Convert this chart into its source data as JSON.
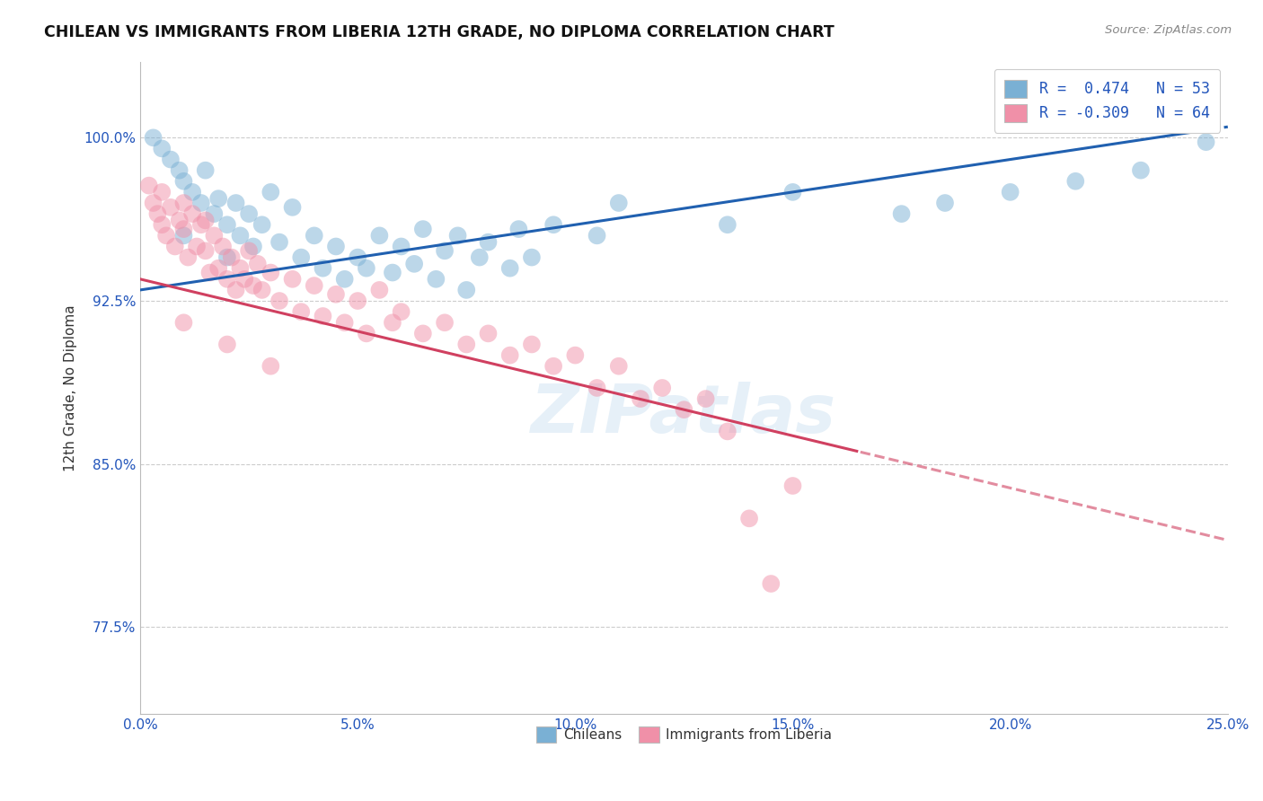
{
  "title": "CHILEAN VS IMMIGRANTS FROM LIBERIA 12TH GRADE, NO DIPLOMA CORRELATION CHART",
  "source": "Source: ZipAtlas.com",
  "ylabel": "12th Grade, No Diploma",
  "xlabel": "",
  "xlim": [
    0.0,
    25.0
  ],
  "ylim": [
    73.5,
    103.5
  ],
  "xticks": [
    0.0,
    5.0,
    10.0,
    15.0,
    20.0,
    25.0
  ],
  "yticks": [
    77.5,
    85.0,
    92.5,
    100.0
  ],
  "ytick_labels": [
    "77.5%",
    "85.0%",
    "92.5%",
    "100.0%"
  ],
  "xtick_labels": [
    "0.0%",
    "5.0%",
    "10.0%",
    "15.0%",
    "20.0%",
    "25.0%"
  ],
  "legend_items": [
    {
      "label": "R =  0.474   N = 53",
      "color": "#a8c4e0"
    },
    {
      "label": "R = -0.309   N = 64",
      "color": "#f4a7b9"
    }
  ],
  "chilean_color": "#7ab0d4",
  "liberia_color": "#f090a8",
  "blue_line_color": "#2060b0",
  "pink_line_color": "#d04060",
  "watermark": "ZIPatlas",
  "blue_line_x0": 0.0,
  "blue_line_y0": 93.0,
  "blue_line_x1": 25.0,
  "blue_line_y1": 100.5,
  "pink_line_x0": 0.0,
  "pink_line_y0": 93.5,
  "pink_line_x1": 25.0,
  "pink_line_y1": 81.5,
  "pink_solid_end": 16.5,
  "blue_solid_end": 24.5,
  "chilean_scatter": [
    [
      0.3,
      100.0
    ],
    [
      0.5,
      99.5
    ],
    [
      0.7,
      99.0
    ],
    [
      0.9,
      98.5
    ],
    [
      1.0,
      98.0
    ],
    [
      1.2,
      97.5
    ],
    [
      1.4,
      97.0
    ],
    [
      1.5,
      98.5
    ],
    [
      1.7,
      96.5
    ],
    [
      1.8,
      97.2
    ],
    [
      2.0,
      96.0
    ],
    [
      2.2,
      97.0
    ],
    [
      2.3,
      95.5
    ],
    [
      2.5,
      96.5
    ],
    [
      2.6,
      95.0
    ],
    [
      2.8,
      96.0
    ],
    [
      3.0,
      97.5
    ],
    [
      3.2,
      95.2
    ],
    [
      3.5,
      96.8
    ],
    [
      3.7,
      94.5
    ],
    [
      4.0,
      95.5
    ],
    [
      4.2,
      94.0
    ],
    [
      4.5,
      95.0
    ],
    [
      4.7,
      93.5
    ],
    [
      5.0,
      94.5
    ],
    [
      5.2,
      94.0
    ],
    [
      5.5,
      95.5
    ],
    [
      5.8,
      93.8
    ],
    [
      6.0,
      95.0
    ],
    [
      6.3,
      94.2
    ],
    [
      6.5,
      95.8
    ],
    [
      6.8,
      93.5
    ],
    [
      7.0,
      94.8
    ],
    [
      7.3,
      95.5
    ],
    [
      7.5,
      93.0
    ],
    [
      7.8,
      94.5
    ],
    [
      8.0,
      95.2
    ],
    [
      8.5,
      94.0
    ],
    [
      8.7,
      95.8
    ],
    [
      9.0,
      94.5
    ],
    [
      9.5,
      96.0
    ],
    [
      10.5,
      95.5
    ],
    [
      11.0,
      97.0
    ],
    [
      13.5,
      96.0
    ],
    [
      15.0,
      97.5
    ],
    [
      17.5,
      96.5
    ],
    [
      18.5,
      97.0
    ],
    [
      20.0,
      97.5
    ],
    [
      21.5,
      98.0
    ],
    [
      23.0,
      98.5
    ],
    [
      24.5,
      99.8
    ],
    [
      1.0,
      95.5
    ],
    [
      2.0,
      94.5
    ]
  ],
  "liberia_scatter": [
    [
      0.2,
      97.8
    ],
    [
      0.3,
      97.0
    ],
    [
      0.4,
      96.5
    ],
    [
      0.5,
      97.5
    ],
    [
      0.5,
      96.0
    ],
    [
      0.6,
      95.5
    ],
    [
      0.7,
      96.8
    ],
    [
      0.8,
      95.0
    ],
    [
      0.9,
      96.2
    ],
    [
      1.0,
      97.0
    ],
    [
      1.0,
      95.8
    ],
    [
      1.1,
      94.5
    ],
    [
      1.2,
      96.5
    ],
    [
      1.3,
      95.0
    ],
    [
      1.4,
      96.0
    ],
    [
      1.5,
      94.8
    ],
    [
      1.5,
      96.2
    ],
    [
      1.6,
      93.8
    ],
    [
      1.7,
      95.5
    ],
    [
      1.8,
      94.0
    ],
    [
      1.9,
      95.0
    ],
    [
      2.0,
      93.5
    ],
    [
      2.1,
      94.5
    ],
    [
      2.2,
      93.0
    ],
    [
      2.3,
      94.0
    ],
    [
      2.4,
      93.5
    ],
    [
      2.5,
      94.8
    ],
    [
      2.6,
      93.2
    ],
    [
      2.7,
      94.2
    ],
    [
      2.8,
      93.0
    ],
    [
      3.0,
      93.8
    ],
    [
      3.2,
      92.5
    ],
    [
      3.5,
      93.5
    ],
    [
      3.7,
      92.0
    ],
    [
      4.0,
      93.2
    ],
    [
      4.2,
      91.8
    ],
    [
      4.5,
      92.8
    ],
    [
      4.7,
      91.5
    ],
    [
      5.0,
      92.5
    ],
    [
      5.2,
      91.0
    ],
    [
      5.5,
      93.0
    ],
    [
      5.8,
      91.5
    ],
    [
      6.0,
      92.0
    ],
    [
      6.5,
      91.0
    ],
    [
      7.0,
      91.5
    ],
    [
      7.5,
      90.5
    ],
    [
      8.0,
      91.0
    ],
    [
      8.5,
      90.0
    ],
    [
      9.0,
      90.5
    ],
    [
      9.5,
      89.5
    ],
    [
      10.0,
      90.0
    ],
    [
      10.5,
      88.5
    ],
    [
      11.0,
      89.5
    ],
    [
      11.5,
      88.0
    ],
    [
      12.0,
      88.5
    ],
    [
      12.5,
      87.5
    ],
    [
      13.0,
      88.0
    ],
    [
      13.5,
      86.5
    ],
    [
      14.0,
      82.5
    ],
    [
      15.0,
      84.0
    ],
    [
      1.0,
      91.5
    ],
    [
      2.0,
      90.5
    ],
    [
      3.0,
      89.5
    ],
    [
      14.5,
      79.5
    ]
  ]
}
